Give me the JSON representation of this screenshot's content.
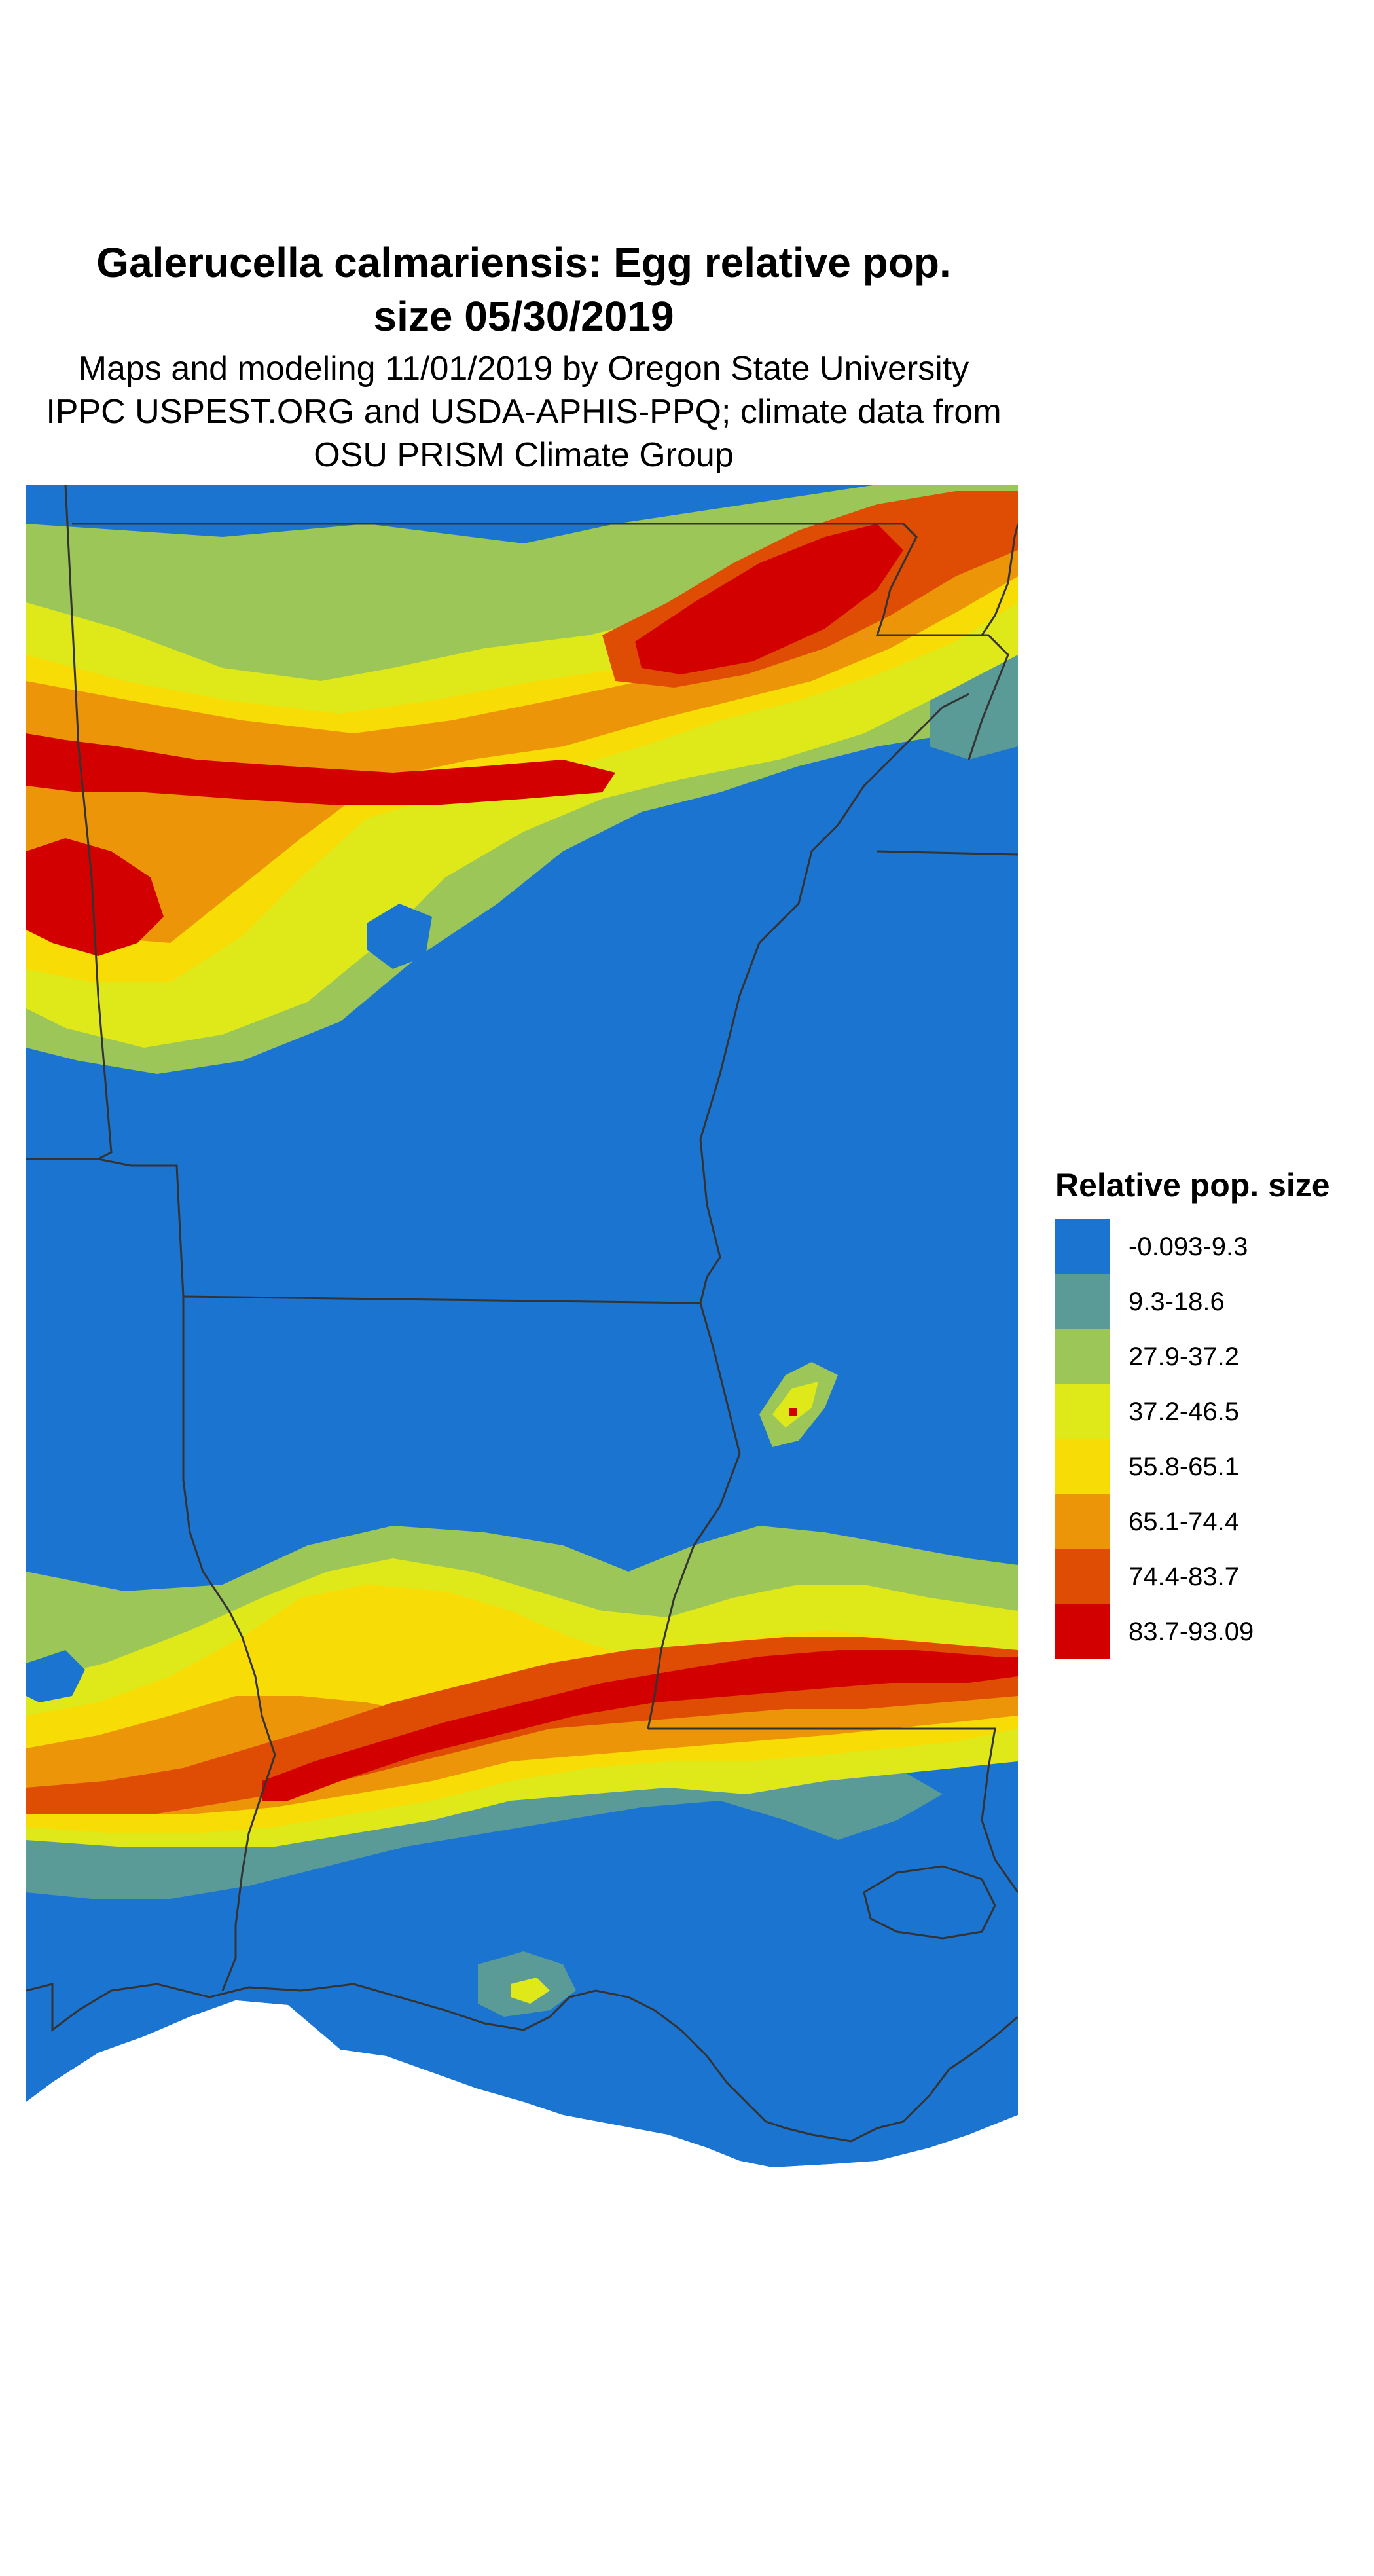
{
  "title": {
    "line1": "Galerucella calmariensis: Egg relative pop.",
    "line2": "size 05/30/2019"
  },
  "subtitle": {
    "line1": "Maps and modeling 11/01/2019 by Oregon State University",
    "line2": "IPPC USPEST.ORG and USDA-APHIS-PPQ; climate data from",
    "line3": "OSU PRISM Climate Group"
  },
  "legend": {
    "title": "Relative pop. size",
    "items": [
      {
        "label": "-0.093-9.3",
        "color": "#1b74d0"
      },
      {
        "label": "9.3-18.6",
        "color": "#5a9b98"
      },
      {
        "label": "27.9-37.2",
        "color": "#9cc657"
      },
      {
        "label": "37.2-46.5",
        "color": "#dfe91a"
      },
      {
        "label": "55.8-65.1",
        "color": "#f7dc05"
      },
      {
        "label": "65.1-74.4",
        "color": "#ec9508"
      },
      {
        "label": "74.4-83.7",
        "color": "#df4c04"
      },
      {
        "label": "83.7-93.09",
        "color": "#d30000"
      }
    ]
  },
  "map": {
    "ocean_color": "#ffffff",
    "border_color": "#333333"
  }
}
